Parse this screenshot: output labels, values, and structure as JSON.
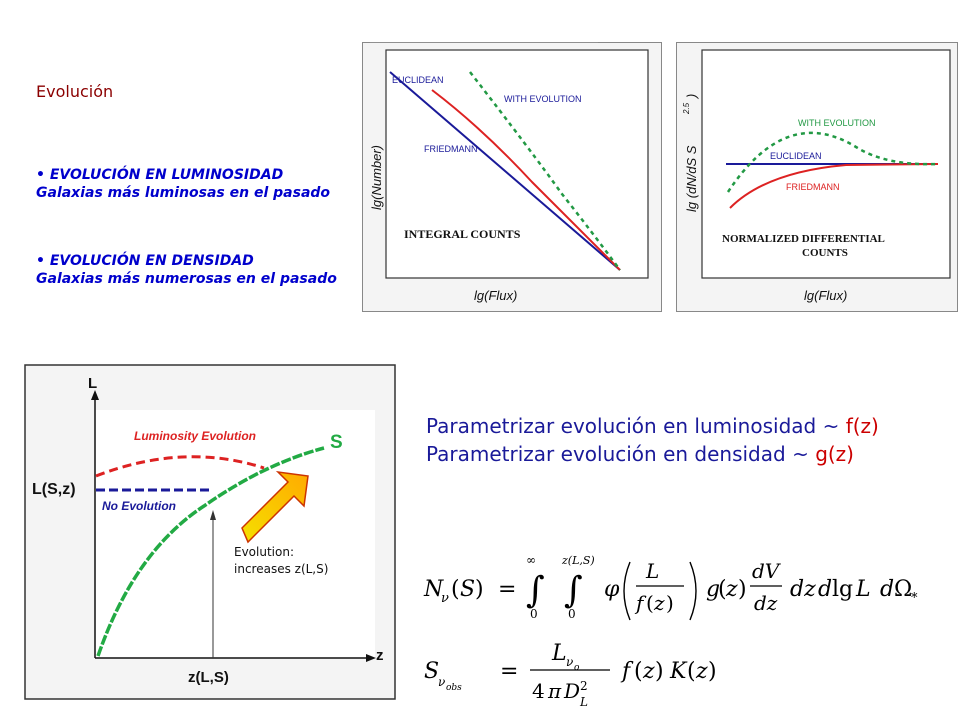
{
  "left_text": {
    "title": "Evolución",
    "items": [
      {
        "heading": "EVOLUCIÓN EN LUMINOSIDAD",
        "sub": "Galaxias más luminosas en el pasado"
      },
      {
        "heading": "EVOLUCIÓN EN DENSIDAD",
        "sub": "Galaxias más numerosas en el pasado"
      }
    ]
  },
  "plot_integral": {
    "ylabel": "lg(Number)",
    "xlabel": "lg(Flux)",
    "title": "INTEGRAL COUNTS",
    "curves": [
      "EUCLIDEAN",
      "WITH EVOLUTION",
      "FRIEDMANN"
    ]
  },
  "plot_differential": {
    "ylabel": "lg (dN/dS  S",
    "ylabel_exp": "2.5",
    "ylabel_close": ")",
    "xlabel": "lg(Flux)",
    "title_line1": "NORMALIZED DIFFERENTIAL",
    "title_line2": "COUNTS",
    "curves": [
      "WITH EVOLUTION",
      "EUCLIDEAN",
      "FRIEDMANN"
    ]
  },
  "lz_diagram": {
    "y_axis": "L",
    "x_axis": "z",
    "curve_label": "S",
    "lum_evo": "Luminosity Evolution",
    "no_evo": "No Evolution",
    "l_point": "L(S,z)",
    "z_point": "z(L,S)",
    "note_line1": "Evolution:",
    "note_line2": "increases z(L,S)"
  },
  "param": {
    "line1_text": "Parametrizar evolución en luminosidad ~ ",
    "line1_fn": "f(z)",
    "line2_text": "Parametrizar evolución en densidad ~ ",
    "line2_fn": "g(z)"
  },
  "colors": {
    "euclidean": "#1a1a99",
    "friedmann": "#dd2222",
    "evolution": "#229944",
    "text_blue": "#1a1a99",
    "accent_red": "#cc0000"
  }
}
